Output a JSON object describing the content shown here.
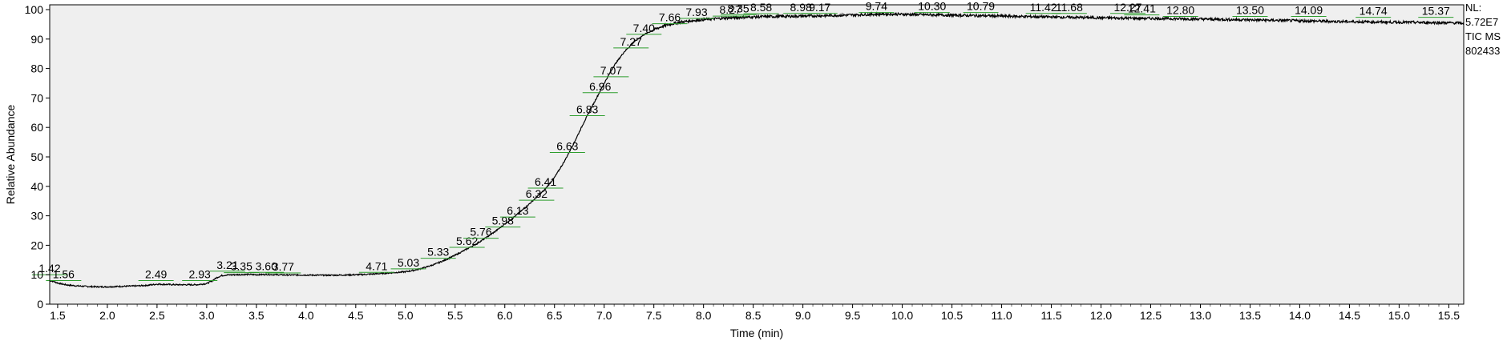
{
  "chart_data": {
    "type": "line",
    "xlabel": "Time (min)",
    "ylabel": "Relative Abundance",
    "xlim": [
      1.42,
      15.65
    ],
    "ylim": [
      0,
      100
    ],
    "x_ticks": [
      "1.5",
      "2.0",
      "2.5",
      "3.0",
      "3.5",
      "4.0",
      "4.5",
      "5.0",
      "5.5",
      "6.0",
      "6.5",
      "7.0",
      "7.5",
      "8.0",
      "8.5",
      "9.0",
      "9.5",
      "10.0",
      "10.5",
      "11.0",
      "11.5",
      "12.0",
      "12.5",
      "13.0",
      "13.5",
      "14.0",
      "14.5",
      "15.0",
      "15.5"
    ],
    "y_ticks": [
      "0",
      "10",
      "20",
      "30",
      "40",
      "50",
      "60",
      "70",
      "80",
      "90",
      "100"
    ],
    "background": "#efefef",
    "line_color": "#000000",
    "label_tick_color": "#2e9e2e",
    "info": [
      "NL:",
      "5.72E7",
      "TIC  MS",
      "802433"
    ],
    "series": [
      {
        "x": [
          1.42,
          1.45,
          1.5,
          1.55,
          1.6,
          1.7,
          1.8,
          1.9,
          2.0,
          2.1,
          2.2,
          2.3,
          2.4,
          2.5,
          2.6,
          2.7,
          2.8,
          2.9,
          3.0,
          3.05,
          3.1,
          3.15,
          3.2,
          3.3,
          3.4,
          3.5,
          3.6,
          3.7,
          3.8,
          4.0,
          4.2,
          4.4,
          4.6,
          4.8,
          5.0,
          5.1,
          5.2,
          5.3,
          5.4,
          5.5,
          5.6,
          5.7,
          5.8,
          5.9,
          6.0,
          6.1,
          6.2,
          6.3,
          6.4,
          6.5,
          6.6,
          6.7,
          6.8,
          6.9,
          7.0,
          7.1,
          7.2,
          7.3,
          7.4,
          7.5,
          7.6,
          7.7,
          7.8,
          7.9,
          8.0,
          8.2,
          8.4,
          8.6,
          8.8,
          9.0,
          9.3,
          9.6,
          9.8,
          10.0,
          10.5,
          11.0,
          11.5,
          12.0,
          12.5,
          13.0,
          13.5,
          14.0,
          14.5,
          15.0,
          15.3,
          15.5,
          15.65
        ],
        "y": [
          8.0,
          7.8,
          7.2,
          6.8,
          6.5,
          6.2,
          6.0,
          5.9,
          5.9,
          6.0,
          6.1,
          6.2,
          6.4,
          6.8,
          6.7,
          6.6,
          6.6,
          6.6,
          7.0,
          7.8,
          9.0,
          9.7,
          9.9,
          10.0,
          10.1,
          10.0,
          10.1,
          10.0,
          9.9,
          9.9,
          9.8,
          9.9,
          10.1,
          10.5,
          11.0,
          11.6,
          12.5,
          13.6,
          15.0,
          16.6,
          18.4,
          20.2,
          22.3,
          24.6,
          27.2,
          29.8,
          32.6,
          35.7,
          38.8,
          43.0,
          48.5,
          55.0,
          62.0,
          68.5,
          75.0,
          81.0,
          85.6,
          89.0,
          91.5,
          93.2,
          94.5,
          95.3,
          95.9,
          96.3,
          96.6,
          97.1,
          97.4,
          97.6,
          97.7,
          97.8,
          98.0,
          98.3,
          98.5,
          98.4,
          98.1,
          97.8,
          97.5,
          97.2,
          97.0,
          96.8,
          96.5,
          96.2,
          95.9,
          95.7,
          95.6,
          95.5,
          95.4
        ]
      }
    ],
    "peak_labels": [
      {
        "text": "1.42",
        "x": 1.42,
        "y": 10.0
      },
      {
        "text": "1.56",
        "x": 1.56,
        "y": 8.0
      },
      {
        "text": "2.49",
        "x": 2.49,
        "y": 8.0
      },
      {
        "text": "2.93",
        "x": 2.93,
        "y": 8.0
      },
      {
        "text": "3.21",
        "x": 3.21,
        "y": 11.2
      },
      {
        "text": "3.35",
        "x": 3.35,
        "y": 10.7
      },
      {
        "text": "3.60",
        "x": 3.6,
        "y": 10.8
      },
      {
        "text": "3.77",
        "x": 3.77,
        "y": 10.6
      },
      {
        "text": "4.71",
        "x": 4.71,
        "y": 10.8
      },
      {
        "text": "5.03",
        "x": 5.03,
        "y": 12.0
      },
      {
        "text": "5.33",
        "x": 5.33,
        "y": 15.6
      },
      {
        "text": "5.62",
        "x": 5.62,
        "y": 19.3
      },
      {
        "text": "5.76",
        "x": 5.76,
        "y": 22.4
      },
      {
        "text": "5.98",
        "x": 5.98,
        "y": 26.2
      },
      {
        "text": "6.13",
        "x": 6.13,
        "y": 29.6
      },
      {
        "text": "6.32",
        "x": 6.32,
        "y": 35.3
      },
      {
        "text": "6.41",
        "x": 6.41,
        "y": 39.4
      },
      {
        "text": "6.63",
        "x": 6.63,
        "y": 51.5
      },
      {
        "text": "6.83",
        "x": 6.83,
        "y": 64.0
      },
      {
        "text": "6.96",
        "x": 6.96,
        "y": 71.8
      },
      {
        "text": "7.07",
        "x": 7.07,
        "y": 77.2
      },
      {
        "text": "7.27",
        "x": 7.27,
        "y": 87.0
      },
      {
        "text": "7.40",
        "x": 7.4,
        "y": 91.6
      },
      {
        "text": "7.66",
        "x": 7.66,
        "y": 95.2
      },
      {
        "text": "7.93",
        "x": 7.93,
        "y": 97.0
      },
      {
        "text": "8.27",
        "x": 8.27,
        "y": 97.8
      },
      {
        "text": "8.35",
        "x": 8.35,
        "y": 98.3
      },
      {
        "text": "8.58",
        "x": 8.58,
        "y": 98.6
      },
      {
        "text": "8.98",
        "x": 8.98,
        "y": 98.7
      },
      {
        "text": "9.17",
        "x": 9.17,
        "y": 98.7
      },
      {
        "text": "9.74",
        "x": 9.74,
        "y": 99.0
      },
      {
        "text": "10.30",
        "x": 10.3,
        "y": 99.0
      },
      {
        "text": "10.79",
        "x": 10.79,
        "y": 99.0
      },
      {
        "text": "11.42",
        "x": 11.42,
        "y": 98.7
      },
      {
        "text": "11.68",
        "x": 11.68,
        "y": 98.7
      },
      {
        "text": "12.27",
        "x": 12.27,
        "y": 98.7
      },
      {
        "text": "12.41",
        "x": 12.41,
        "y": 98.2
      },
      {
        "text": "12.80",
        "x": 12.8,
        "y": 97.7
      },
      {
        "text": "13.50",
        "x": 13.5,
        "y": 97.7
      },
      {
        "text": "14.09",
        "x": 14.09,
        "y": 97.7
      },
      {
        "text": "14.74",
        "x": 14.74,
        "y": 97.4
      },
      {
        "text": "15.37",
        "x": 15.37,
        "y": 97.4
      }
    ]
  }
}
